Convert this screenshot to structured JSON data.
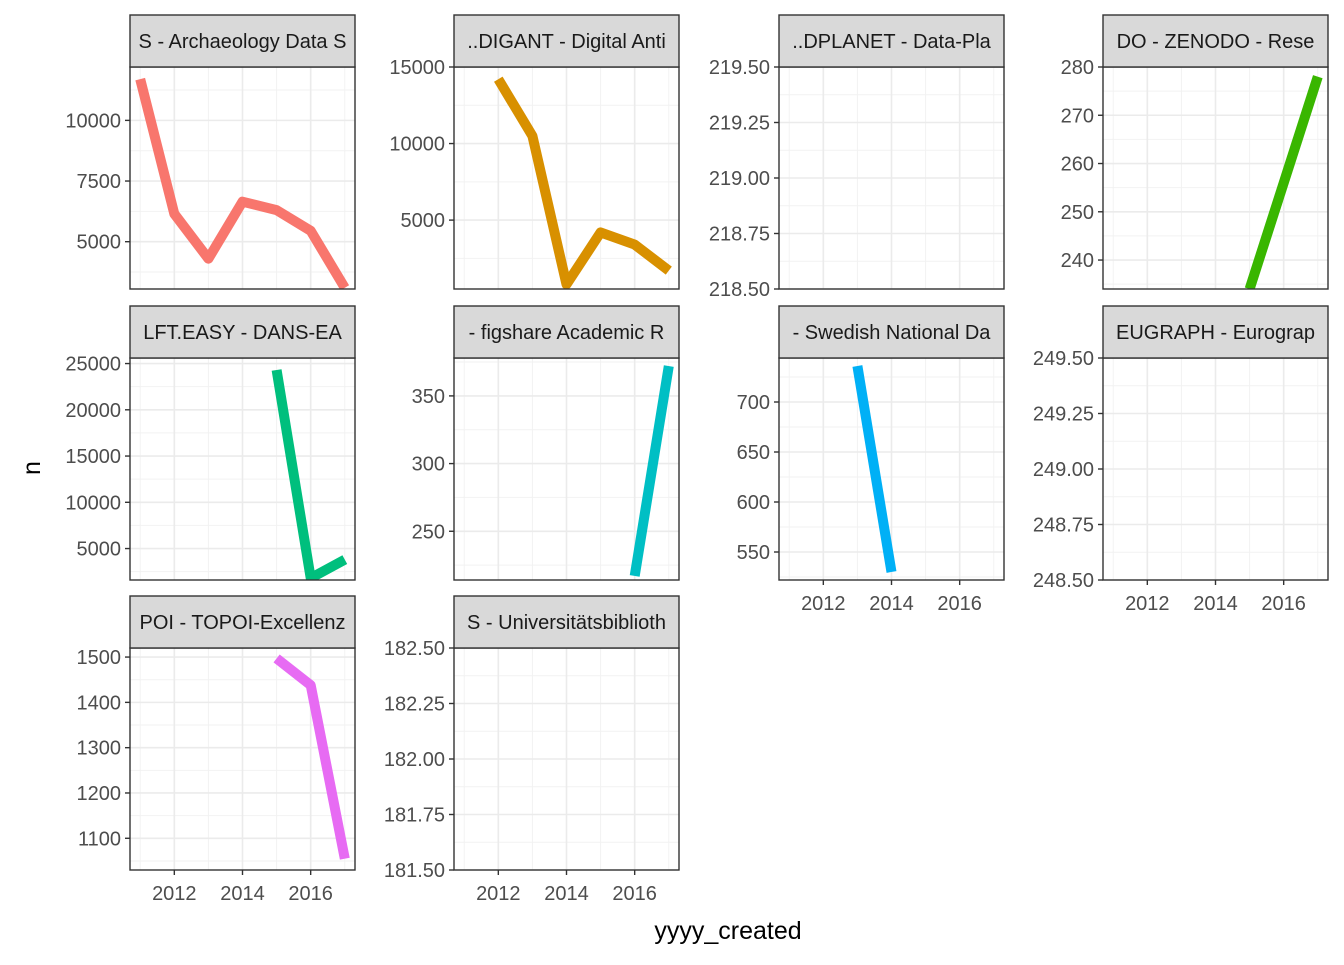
{
  "chart_data": {
    "type": "line",
    "xlabel": "yyyy_created",
    "ylabel": "n",
    "xlim": [
      2010.7,
      2017.3
    ],
    "x_ticks": [
      2012,
      2014,
      2016
    ],
    "x_minor": [
      2011,
      2013,
      2015,
      2017
    ],
    "grid": true,
    "legend": "none",
    "facets": [
      {
        "strip": "S - Archaeology Data S",
        "color": "#F8766D",
        "ylim": [
          3050,
          12200
        ],
        "y_ticks": [
          5000,
          7500,
          10000
        ],
        "x_axis_shown": false,
        "points": [
          [
            2011,
            11700
          ],
          [
            2012,
            6150
          ],
          [
            2013,
            4300
          ],
          [
            2014,
            6650
          ],
          [
            2015,
            6300
          ],
          [
            2016,
            5450
          ],
          [
            2017,
            3100
          ]
        ]
      },
      {
        "strip": "..DIGANT - Digital Anti",
        "color": "#D89000",
        "ylim": [
          500,
          15000
        ],
        "y_ticks": [
          5000,
          10000,
          15000
        ],
        "x_axis_shown": false,
        "points": [
          [
            2012,
            14200
          ],
          [
            2013,
            10500
          ],
          [
            2014,
            800
          ],
          [
            2015,
            4200
          ],
          [
            2016,
            3400
          ],
          [
            2017,
            1700
          ]
        ]
      },
      {
        "strip": "..DPLANET - Data-Pla",
        "color": "#A3A500",
        "ylim": [
          218.5,
          219.5
        ],
        "y_ticks": [
          218.5,
          218.75,
          219.0,
          219.25,
          219.5
        ],
        "y_tick_labels": [
          "218.50",
          "218.75",
          "219.00",
          "219.25",
          "219.50"
        ],
        "x_axis_shown": false,
        "points": []
      },
      {
        "strip": "DO - ZENODO - Rese",
        "color": "#39B600",
        "ylim": [
          234,
          280
        ],
        "y_ticks": [
          240,
          250,
          260,
          270,
          280
        ],
        "x_axis_shown": false,
        "points": [
          [
            2015,
            234
          ],
          [
            2017,
            278
          ]
        ]
      },
      {
        "strip": "LFT.EASY - DANS-EA",
        "color": "#00BF7D",
        "ylim": [
          1600,
          25600
        ],
        "y_ticks": [
          5000,
          10000,
          15000,
          20000,
          25000
        ],
        "x_axis_shown": false,
        "points": [
          [
            2015,
            24300
          ],
          [
            2016,
            1800
          ],
          [
            2017,
            3800
          ]
        ]
      },
      {
        "strip": "- figshare Academic R",
        "color": "#00BFC4",
        "ylim": [
          214,
          378
        ],
        "y_ticks": [
          250,
          300,
          350
        ],
        "x_axis_shown": false,
        "points": [
          [
            2016,
            217
          ],
          [
            2017,
            372
          ]
        ]
      },
      {
        "strip": "- Swedish National Da",
        "color": "#00B0F6",
        "ylim": [
          522,
          744
        ],
        "y_ticks": [
          550,
          600,
          650,
          700
        ],
        "x_axis_shown": true,
        "points": [
          [
            2013,
            736
          ],
          [
            2014,
            530
          ]
        ]
      },
      {
        "strip": "EUGRAPH - Eurograp",
        "color": "#9590FF",
        "ylim": [
          248.5,
          249.5
        ],
        "y_ticks": [
          248.5,
          248.75,
          249.0,
          249.25,
          249.5
        ],
        "y_tick_labels": [
          "248.50",
          "248.75",
          "249.00",
          "249.25",
          "249.50"
        ],
        "x_axis_shown": true,
        "points": []
      },
      {
        "strip": "POI - TOPOI-Excellenz",
        "color": "#E76BF3",
        "ylim": [
          1030,
          1520
        ],
        "y_ticks": [
          1100,
          1200,
          1300,
          1400,
          1500
        ],
        "x_axis_shown": true,
        "points": [
          [
            2015,
            1497
          ],
          [
            2016,
            1438
          ],
          [
            2017,
            1055
          ]
        ]
      },
      {
        "strip": "S - Universitätsbiblioth",
        "color": "#FF62BC",
        "ylim": [
          181.5,
          182.5
        ],
        "y_ticks": [
          181.5,
          181.75,
          182.0,
          182.25,
          182.5
        ],
        "y_tick_labels": [
          "181.50",
          "181.75",
          "182.00",
          "182.25",
          "182.50"
        ],
        "x_axis_shown": true,
        "points": []
      }
    ]
  }
}
